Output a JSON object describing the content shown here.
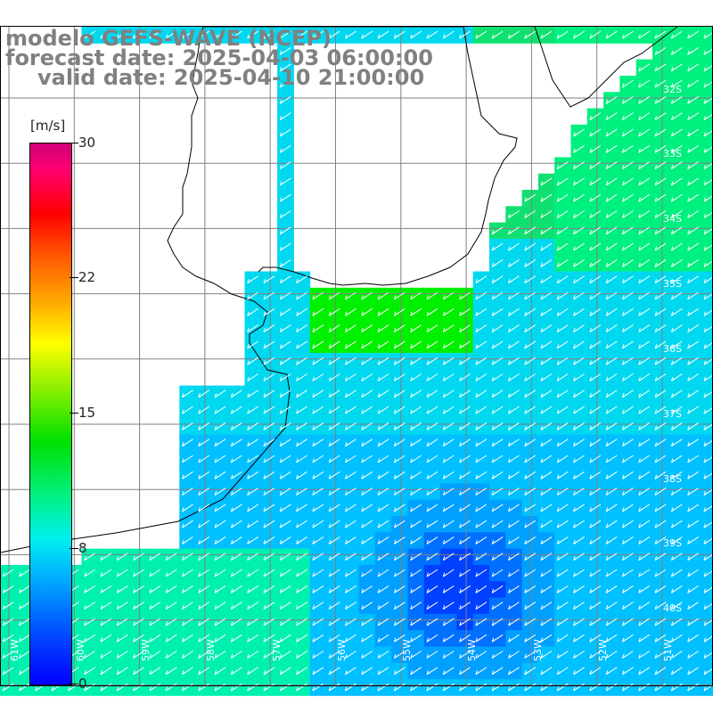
{
  "title": {
    "line1": "modelo GEFS-WAVE (NCEP)",
    "line2": "forecast date: 2025-04-03 06:00:00",
    "line3": "valid date: 2025-04-10 21:00:00"
  },
  "colorbar": {
    "unit": "[m/s]",
    "ticks": [
      "30",
      "22",
      "15",
      "8",
      "0"
    ]
  },
  "lat_labels": [
    "32S",
    "33S",
    "34S",
    "35S",
    "36S",
    "37S",
    "38S",
    "39S",
    "40S"
  ],
  "lon_labels": [
    "61W",
    "60W",
    "59W",
    "58W",
    "57W",
    "56W",
    "55W",
    "54W",
    "53W",
    "52W",
    "51W"
  ],
  "colors": {
    "land": "#ffffff",
    "grid": "#808080",
    "coast": "#000000",
    "arrow": "#ffffff",
    "title": "#808080"
  }
}
